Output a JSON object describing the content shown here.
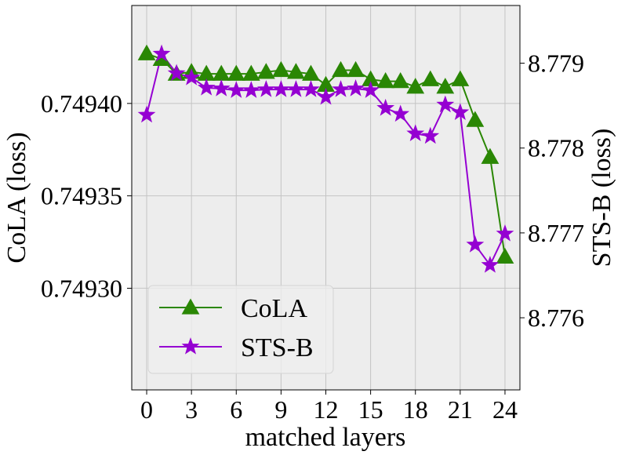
{
  "chart_data": {
    "type": "line",
    "xlabel": "matched layers",
    "ylabel_left": "CoLA (loss)",
    "ylabel_right": "STS-B (loss)",
    "x": [
      0,
      1,
      2,
      3,
      4,
      5,
      6,
      7,
      8,
      9,
      10,
      11,
      12,
      13,
      14,
      15,
      16,
      17,
      18,
      19,
      20,
      21,
      22,
      23,
      24
    ],
    "xlim": [
      -1,
      25
    ],
    "xticks": [
      0,
      3,
      6,
      9,
      12,
      15,
      18,
      21,
      24
    ],
    "xtick_labels": [
      "0",
      "3",
      "6",
      "9",
      "12",
      "15",
      "18",
      "21",
      "24"
    ],
    "ylim_left": [
      0.749245,
      0.749453
    ],
    "yticks_left": [
      0.7493,
      0.74935,
      0.7494
    ],
    "ytick_labels_left": [
      "0.74930",
      "0.74935",
      "0.74940"
    ],
    "ylim_right": [
      8.77515,
      8.77968
    ],
    "yticks_right": [
      8.776,
      8.777,
      8.778,
      8.779
    ],
    "ytick_labels_right": [
      "8.776",
      "8.777",
      "8.778",
      "8.779"
    ],
    "grid": true,
    "legend_position": "bottom-left",
    "series": [
      {
        "name": "CoLA",
        "axis": "left",
        "color": "#2a8704",
        "marker": "triangle",
        "values": [
          0.749427,
          0.749424,
          0.749416,
          0.749417,
          0.749416,
          0.749416,
          0.749416,
          0.749416,
          0.749417,
          0.749418,
          0.749417,
          0.749416,
          0.74941,
          0.749418,
          0.749418,
          0.749413,
          0.749412,
          0.749412,
          0.749409,
          0.749413,
          0.749409,
          0.749413,
          0.749391,
          0.749371,
          0.749317
        ]
      },
      {
        "name": "STS-B",
        "axis": "right",
        "color": "#9500d2",
        "marker": "star",
        "values": [
          8.77839,
          8.77911,
          8.77888,
          8.77883,
          8.77871,
          8.7787,
          8.77868,
          8.77868,
          8.77869,
          8.77869,
          8.77869,
          8.77869,
          8.7786,
          8.77869,
          8.7787,
          8.77868,
          8.77847,
          8.7784,
          8.77817,
          8.77814,
          8.77851,
          8.77842,
          8.77686,
          8.77662,
          8.77699
        ]
      }
    ]
  }
}
